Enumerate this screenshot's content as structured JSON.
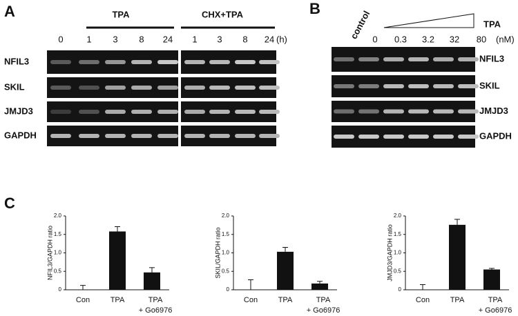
{
  "panels": {
    "A": {
      "label": "A",
      "groups": [
        "TPA",
        "CHX+TPA"
      ],
      "lanes": [
        "0",
        "1",
        "3",
        "8",
        "24",
        "1",
        "3",
        "8",
        "24"
      ],
      "unit": "(h)",
      "genes": [
        "NFIL3",
        "SKIL",
        "JMJD3",
        "GAPDH"
      ]
    },
    "B": {
      "label": "B",
      "control": "control",
      "treatment": "TPA",
      "lanes": [
        "0",
        "0.3",
        "3.2",
        "32",
        "80"
      ],
      "unit": "(nM)",
      "genes": [
        "NFIL3",
        "SKIL",
        "JMJD3",
        "GAPDH"
      ]
    },
    "C": {
      "label": "C"
    }
  },
  "chart_data": [
    {
      "type": "bar",
      "ylabel": "NFIL3/GAPDH ratio",
      "categories": [
        "Con",
        "TPA",
        "TPA\n+ Go6976"
      ],
      "values": [
        0,
        1.58,
        0.47
      ],
      "errors": [
        0.12,
        0.13,
        0.13
      ],
      "color": "#111111",
      "ylim": [
        0,
        2
      ],
      "yticks": [
        0,
        0.5,
        {
          "value": 1,
          "label": "1.0"
        },
        1.5,
        {
          "value": 2,
          "label": "2.0"
        }
      ]
    },
    {
      "type": "bar",
      "ylabel": "SKIL/GAPDH ratio",
      "categories": [
        "Con",
        "TPA",
        "TPA\n+ Go6976"
      ],
      "values": [
        0,
        1.03,
        0.17
      ],
      "errors": [
        0.27,
        0.12,
        0.06
      ],
      "color": "#111111",
      "ylim": [
        0,
        2
      ],
      "yticks": [
        0,
        0.5,
        {
          "value": 1,
          "label": "1.0"
        },
        1.5,
        {
          "value": 2,
          "label": "2.0"
        }
      ]
    },
    {
      "type": "bar",
      "ylabel": "JMJD3/GAPDH ratio",
      "categories": [
        "Con",
        "TPA",
        "TPA\n+ Go6976"
      ],
      "values": [
        0,
        1.76,
        0.55
      ],
      "errors": [
        0.14,
        0.15,
        0.03
      ],
      "color": "#111111",
      "ylim": [
        0,
        2
      ],
      "yticks": [
        0,
        0.5,
        {
          "value": 1,
          "label": "1.0"
        },
        1.5,
        {
          "value": 2,
          "label": "2.0"
        }
      ]
    }
  ]
}
